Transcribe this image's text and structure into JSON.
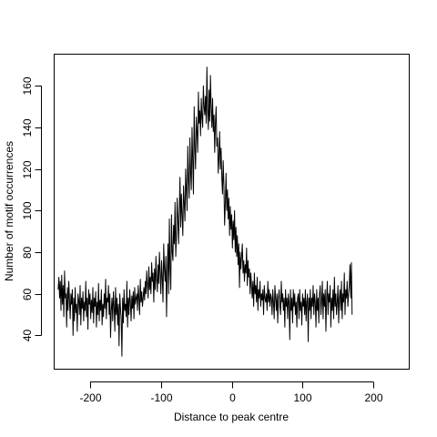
{
  "chart_data": {
    "type": "line",
    "title": "",
    "xlabel": "Distance to peak centre",
    "ylabel": "Number of motif occurrences",
    "xlim": [
      -250,
      250
    ],
    "ylim": [
      24,
      175
    ],
    "xticks": [
      -200,
      -100,
      0,
      100,
      200
    ],
    "yticks": [
      40,
      60,
      80,
      100,
      120,
      140,
      160
    ],
    "grid": false,
    "legend": "none",
    "line_color": "#000000",
    "series": [
      {
        "x_start": -245,
        "x_step": 1,
        "values": [
          62,
          68,
          58,
          66,
          52,
          69,
          55,
          64,
          49,
          71,
          58,
          60,
          44,
          63,
          52,
          66,
          57,
          48,
          60,
          55,
          62,
          40,
          58,
          47,
          63,
          51,
          55,
          42,
          60,
          57,
          50,
          64,
          45,
          58,
          53,
          61,
          47,
          56,
          52,
          66,
          49,
          58,
          43,
          62,
          55,
          60,
          48,
          57,
          51,
          63,
          46,
          58,
          54,
          61,
          44,
          56,
          50,
          65,
          47,
          57,
          52,
          62,
          45,
          55,
          49,
          60,
          53,
          67,
          48,
          58,
          56,
          64,
          50,
          60,
          39,
          52,
          58,
          47,
          61,
          54,
          42,
          63,
          50,
          58,
          45,
          55,
          35,
          60,
          53,
          48,
          30,
          58,
          46,
          62,
          52,
          55,
          49,
          66,
          44,
          58,
          50,
          62,
          56,
          47,
          59,
          53,
          61,
          48,
          63,
          55,
          58,
          60,
          52,
          64,
          58,
          50,
          67,
          56,
          61,
          54,
          58,
          63,
          57,
          66,
          60,
          71,
          64,
          58,
          73,
          62,
          68,
          60,
          75,
          66,
          70,
          56,
          72,
          62,
          78,
          67,
          61,
          74,
          65,
          80,
          70,
          60,
          76,
          68,
          56,
          84,
          72,
          66,
          78,
          49,
          70,
          84,
          60,
          96,
          72,
          62,
          98,
          80,
          76,
          93,
          84,
          104,
          78,
          88,
          106,
          96,
          84,
          100,
          116,
          92,
          108,
          98,
          88,
          112,
          104,
          95,
          120,
          110,
          100,
          131,
          114,
          106,
          135,
          118,
          110,
          140,
          124,
          108,
          150,
          130,
          120,
          145,
          138,
          128,
          157,
          142,
          148,
          136,
          154,
          145,
          140,
          160,
          150,
          146,
          155,
          142,
          169,
          148,
          139,
          158,
          143,
          165,
          150,
          140,
          154,
          138,
          146,
          128,
          142,
          150,
          131,
          135,
          118,
          126,
          138,
          120,
          130,
          116,
          108,
          124,
          112,
          93,
          104,
          118,
          100,
          110,
          96,
          106,
          88,
          102,
          91,
          98,
          82,
          95,
          86,
          100,
          80,
          92,
          78,
          88,
          74,
          84,
          63,
          80,
          72,
          78,
          84,
          70,
          76,
          66,
          74,
          70,
          82,
          64,
          76,
          68,
          72,
          60,
          70,
          64,
          58,
          66,
          54,
          70,
          60,
          64,
          56,
          68,
          52,
          62,
          58,
          66,
          54,
          60,
          57,
          62,
          50,
          64,
          58,
          56,
          60,
          52,
          66,
          56,
          62,
          54,
          60,
          58,
          50,
          62,
          56,
          48,
          64,
          58,
          52,
          60,
          46,
          58,
          62,
          54,
          50,
          66,
          56,
          60,
          52,
          58,
          44,
          62,
          54,
          58,
          48,
          60,
          56,
          38,
          62,
          52,
          58,
          46,
          62,
          54,
          60,
          50,
          56,
          44,
          58,
          60,
          48,
          62,
          52,
          56,
          45,
          60,
          54,
          58,
          50,
          62,
          47,
          56,
          60,
          37,
          58,
          52,
          62,
          48,
          58,
          54,
          64,
          50,
          60,
          56,
          44,
          62,
          52,
          58,
          46,
          60,
          64,
          50,
          56,
          66,
          48,
          60,
          54,
          62,
          42,
          58,
          66,
          50,
          60,
          56,
          64,
          44,
          58,
          52,
          62,
          48,
          68,
          54,
          60,
          50,
          56,
          64,
          46,
          58,
          62,
          52,
          66,
          48,
          60,
          56,
          70,
          50,
          62,
          58,
          66,
          54,
          60,
          64,
          74,
          58,
          75,
          50
        ]
      }
    ]
  }
}
